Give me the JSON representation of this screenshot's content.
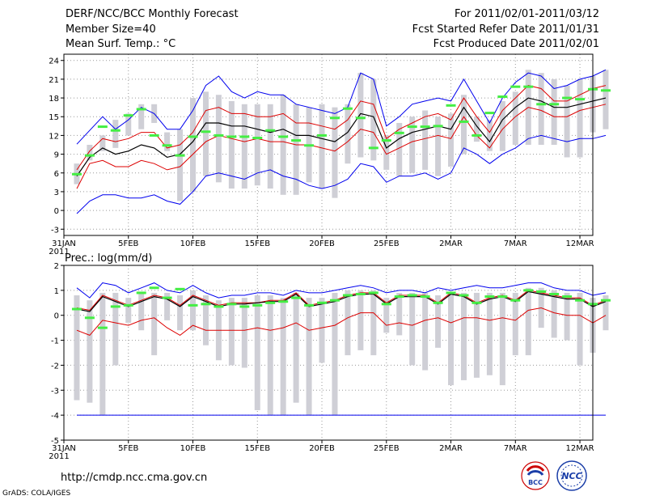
{
  "header": {
    "title": "DERF/NCC/BCC Monthly Forecast",
    "member_size": "Member Size=40",
    "variable": "Mean Surf. Temp.: °C",
    "period": "For 2011/02/01-2011/03/12",
    "started_refer": "Fcst Started Refer Date 2011/01/31",
    "produced": "Fcst Produced Date 2011/02/01"
  },
  "footer": {
    "url": "http://cmdp.ncc.cma.gov.cn",
    "credit": "GrADS: COLA/IGES",
    "logo_bcc": "BCC",
    "logo_ncc": "NCC"
  },
  "colors": {
    "envelope": "#0000ee",
    "quartile": "#dd0000",
    "mean": "#000000",
    "bar": "#cfcfd6",
    "marker": "#44ee44",
    "grid": "#999999"
  },
  "chart_data": [
    {
      "type": "line",
      "title": "Mean Surf. Temp.: °C",
      "x_tick_labels": [
        "31JAN\n2011",
        "5FEB",
        "10FEB",
        "15FEB",
        "20FEB",
        "25FEB",
        "2MAR",
        "7MAR",
        "12MAR"
      ],
      "x_tick_days": [
        0,
        5,
        10,
        15,
        20,
        25,
        30,
        35,
        40
      ],
      "ylim": [
        -4,
        25
      ],
      "yticks": [
        -3,
        0,
        3,
        6,
        9,
        12,
        15,
        18,
        21,
        24
      ],
      "grid": true,
      "series": [
        {
          "name": "max",
          "x_start": 1,
          "values": [
            10.6,
            12.8,
            15,
            13,
            14.5,
            16.5,
            15.5,
            13,
            13,
            16,
            20,
            21.5,
            19,
            18,
            19,
            18.5,
            18.5,
            17,
            16.5,
            16,
            15.5,
            16.5,
            22,
            21,
            13.5,
            15,
            17,
            17.5,
            18,
            17.5,
            21,
            17.5,
            14,
            18,
            20.5,
            22,
            21.5,
            19.5,
            20,
            21,
            21.5,
            22.5
          ]
        },
        {
          "name": "upper",
          "x_start": 1,
          "values": [
            6.5,
            9.5,
            11.5,
            11,
            11.5,
            12.5,
            12.5,
            10,
            10.5,
            12.5,
            16,
            16.5,
            15.5,
            15.5,
            15,
            15,
            15.5,
            14,
            14,
            13.5,
            13,
            14.5,
            17.5,
            17,
            11.5,
            13,
            14,
            15,
            15.5,
            14.5,
            18,
            15,
            12.5,
            16,
            18,
            20,
            19.5,
            17.5,
            17.5,
            18.5,
            19.5,
            20
          ]
        },
        {
          "name": "mean",
          "x_start": 1,
          "values": [
            5.5,
            8.5,
            10,
            9,
            9.5,
            10.5,
            10,
            8.5,
            9,
            11,
            14,
            14,
            13.5,
            13.5,
            13,
            12.5,
            13,
            12,
            12,
            11.5,
            11,
            12.5,
            15.5,
            15,
            10,
            11.5,
            12.5,
            13,
            13.5,
            13,
            16.5,
            13.5,
            11,
            14.5,
            16.5,
            18,
            17.5,
            16.5,
            16.5,
            17,
            17.5,
            18
          ]
        },
        {
          "name": "lower",
          "x_start": 1,
          "values": [
            3.5,
            7.5,
            8,
            7,
            7,
            8,
            7.5,
            6.5,
            7,
            9,
            11,
            12,
            11.5,
            11,
            11.5,
            11,
            11,
            10.5,
            10.5,
            10,
            9.5,
            11,
            13,
            12.5,
            9,
            10,
            11,
            11.5,
            12,
            11.5,
            15,
            12,
            10,
            13,
            15,
            16.5,
            16,
            15,
            15,
            16,
            16.5,
            17
          ]
        },
        {
          "name": "min",
          "x_start": 1,
          "values": [
            -0.5,
            1.5,
            2.5,
            2.5,
            2,
            2,
            2.5,
            1.5,
            1,
            3,
            5.5,
            6,
            5.5,
            5,
            6,
            6.5,
            5.5,
            5,
            4,
            3.5,
            4,
            5,
            7.5,
            7,
            4.5,
            5.5,
            5.5,
            6,
            5,
            6,
            10,
            9,
            7.5,
            9,
            10,
            11.5,
            12,
            11.5,
            11,
            11.5,
            11.5,
            12
          ]
        },
        {
          "name": "bars_low",
          "x_start": 1,
          "values": [
            4.2,
            8,
            9.5,
            10,
            12,
            13,
            14,
            9.5,
            1.5,
            3,
            5.5,
            4.5,
            3.5,
            3.5,
            4,
            3.5,
            2.5,
            2.5,
            4.5,
            3.5,
            2,
            7.5,
            8.5,
            8,
            6.5,
            5.5,
            6,
            6.5,
            5.5,
            7,
            9,
            11,
            9.5,
            9.5,
            10.5,
            10.5,
            10.5,
            10.5,
            8.5,
            8.5,
            12.5,
            13
          ]
        },
        {
          "name": "bars_high",
          "x_start": 1,
          "values": [
            7.5,
            10.5,
            12,
            14.5,
            15.5,
            17,
            17,
            12.5,
            13,
            18,
            19,
            18.5,
            17.5,
            17,
            17,
            17,
            18.5,
            17,
            16.5,
            17,
            16.5,
            17,
            22,
            21,
            12,
            14,
            15,
            16,
            15,
            15.5,
            18.5,
            15,
            14.5,
            17.5,
            19,
            22.5,
            22,
            21,
            20,
            21,
            21.5,
            22.5
          ]
        },
        {
          "name": "observed_marker",
          "x_start": 1,
          "values": [
            5.8,
            8.8,
            13.4,
            12.8,
            15.2,
            16.2,
            12,
            10.4,
            8.8,
            11.8,
            12.6,
            12,
            11.8,
            11.8,
            11.6,
            12.8,
            11.8,
            11.2,
            10.4,
            12,
            14.8,
            16.3,
            14.8,
            10,
            11.2,
            12.4,
            13.4,
            13.4,
            13.5,
            16.8,
            14.2,
            12,
            15.6,
            18.2,
            19.8,
            19.8,
            17,
            17,
            18,
            17.8,
            19.4,
            19.2
          ]
        }
      ]
    },
    {
      "type": "line",
      "title": "Prec.: log(mm/d)",
      "x_tick_labels": [
        "31JAN\n2011",
        "5FEB",
        "10FEB",
        "15FEB",
        "20FEB",
        "25FEB",
        "2MAR",
        "7MAR",
        "12MAR"
      ],
      "x_tick_days": [
        0,
        5,
        10,
        15,
        20,
        25,
        30,
        35,
        40
      ],
      "ylim": [
        -5,
        2
      ],
      "yticks": [
        -5,
        -4,
        -3,
        -2,
        -1,
        0,
        1,
        2
      ],
      "grid": true,
      "series": [
        {
          "name": "max",
          "x_start": 1,
          "values": [
            1.1,
            0.7,
            1.3,
            1.2,
            0.9,
            1.1,
            1.3,
            1.0,
            0.9,
            1.2,
            0.9,
            0.7,
            0.8,
            0.8,
            0.9,
            0.9,
            0.8,
            1.0,
            0.9,
            0.9,
            1.0,
            1.1,
            1.2,
            1.1,
            0.9,
            1.0,
            1.0,
            0.9,
            1.1,
            1.0,
            1.1,
            1.2,
            1.1,
            1.1,
            1.2,
            1.3,
            1.3,
            1.1,
            1.0,
            1.0,
            0.8,
            0.9
          ]
        },
        {
          "name": "upper",
          "x_start": 1,
          "values": [
            0.3,
            0.2,
            0.8,
            0.6,
            0.4,
            0.6,
            0.8,
            0.7,
            0.4,
            0.8,
            0.6,
            0.4,
            0.5,
            0.5,
            0.5,
            0.6,
            0.6,
            0.9,
            0.4,
            0.5,
            0.6,
            0.8,
            0.9,
            0.9,
            0.5,
            0.8,
            0.8,
            0.8,
            0.5,
            0.9,
            0.8,
            0.5,
            0.7,
            0.8,
            0.6,
            1.0,
            0.9,
            0.8,
            0.7,
            0.7,
            0.4,
            0.6
          ]
        },
        {
          "name": "mean",
          "x_start": 1,
          "values": [
            0.25,
            0.15,
            0.75,
            0.55,
            0.35,
            0.55,
            0.75,
            0.65,
            0.35,
            0.75,
            0.55,
            0.35,
            0.45,
            0.45,
            0.5,
            0.55,
            0.55,
            0.85,
            0.35,
            0.45,
            0.55,
            0.75,
            0.85,
            0.85,
            0.45,
            0.75,
            0.75,
            0.75,
            0.45,
            0.85,
            0.75,
            0.45,
            0.65,
            0.75,
            0.55,
            0.95,
            0.85,
            0.75,
            0.65,
            0.65,
            0.35,
            0.55
          ]
        },
        {
          "name": "lower",
          "x_start": 1,
          "values": [
            -0.6,
            -0.8,
            -0.2,
            -0.3,
            -0.4,
            -0.2,
            -0.1,
            -0.5,
            -0.8,
            -0.4,
            -0.6,
            -0.6,
            -0.6,
            -0.6,
            -0.5,
            -0.6,
            -0.5,
            -0.3,
            -0.6,
            -0.5,
            -0.4,
            -0.1,
            0.1,
            0.1,
            -0.4,
            -0.3,
            -0.4,
            -0.2,
            -0.1,
            -0.3,
            -0.1,
            -0.1,
            -0.2,
            -0.1,
            -0.2,
            0.2,
            0.3,
            0.1,
            0.0,
            0.0,
            -0.3,
            0.0
          ]
        },
        {
          "name": "min",
          "x_start": 1,
          "values": [
            -4,
            -4,
            -4,
            -4,
            -4,
            -4,
            -4,
            -4,
            -4,
            -4,
            -4,
            -4,
            -4,
            -4,
            -4,
            -4,
            -4,
            -4,
            -4,
            -4,
            -4,
            -4,
            -4,
            -4,
            -4,
            -4,
            -4,
            -4,
            -4,
            -4,
            -4,
            -4,
            -4,
            -4,
            -4,
            -4,
            -4,
            -4,
            -4,
            -4,
            -4,
            -4
          ]
        },
        {
          "name": "bars_low",
          "x_start": 1,
          "values": [
            -3.4,
            -3.5,
            -4,
            -2,
            -0.3,
            -0.6,
            -1.6,
            -0.2,
            -0.6,
            -0.6,
            -1.2,
            -1.8,
            -2.0,
            -2.1,
            -3.8,
            -4,
            -4,
            -3.5,
            -4,
            -1.9,
            -4,
            -1.6,
            -1.4,
            -1.6,
            -0.7,
            -0.8,
            -2.0,
            -2.2,
            -1.3,
            -2.8,
            -2.6,
            -2.5,
            -2.4,
            -2.8,
            -1.6,
            -1.6,
            -0.5,
            -0.9,
            -1.0,
            -2.0,
            -1.5,
            -0.6
          ]
        },
        {
          "name": "bars_high",
          "x_start": 1,
          "values": [
            0.8,
            0.6,
            0.9,
            0.9,
            0.7,
            0.9,
            0.9,
            0.9,
            0.8,
            1.0,
            0.8,
            0.6,
            0.7,
            0.7,
            0.8,
            0.8,
            0.7,
            0.9,
            0.7,
            0.7,
            0.9,
            1.0,
            1.0,
            1.0,
            0.7,
            0.9,
            0.9,
            0.9,
            0.8,
            0.9,
            0.9,
            0.9,
            0.9,
            0.9,
            0.9,
            1.1,
            1.1,
            1.0,
            0.9,
            0.9,
            0.7,
            0.8
          ]
        },
        {
          "name": "observed_marker",
          "x_start": 1,
          "values": [
            0.25,
            -0.1,
            -0.5,
            0.35,
            0.4,
            0.9,
            1.1,
            0.7,
            1.05,
            0.4,
            0.45,
            0.35,
            0.45,
            0.35,
            0.4,
            0.5,
            0.55,
            0.7,
            0.4,
            0.5,
            0.6,
            0.8,
            0.85,
            0.9,
            0.45,
            0.75,
            0.8,
            0.75,
            0.5,
            0.9,
            0.8,
            0.5,
            0.75,
            0.75,
            0.6,
            1.0,
            0.95,
            0.85,
            0.75,
            0.6,
            0.45,
            0.6
          ]
        }
      ]
    }
  ]
}
